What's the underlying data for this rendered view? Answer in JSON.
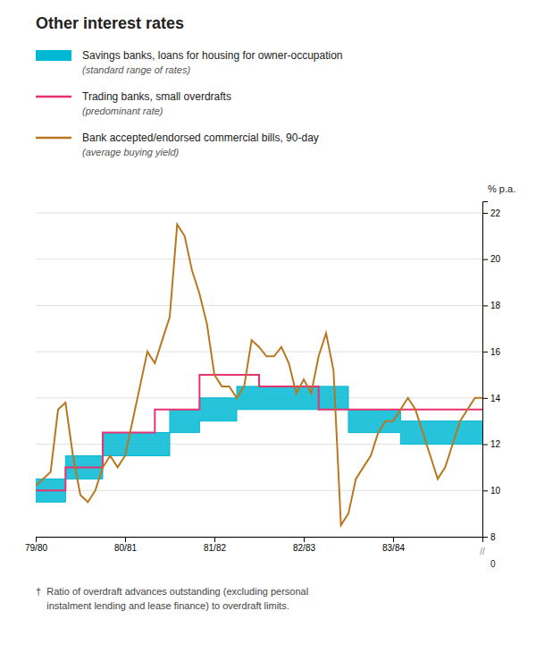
{
  "chart_data": {
    "type": "line",
    "title": "Other interest rates",
    "y_label": "% p.a.",
    "xlim": [
      0,
      60
    ],
    "xticks": [
      {
        "value": 0,
        "label": "79/80"
      },
      {
        "value": 12,
        "label": "80/81"
      },
      {
        "value": 24,
        "label": "81/82"
      },
      {
        "value": 36,
        "label": "82/83"
      },
      {
        "value": 48,
        "label": "83/84"
      }
    ],
    "ylim": [
      8,
      22.5
    ],
    "yticks": [
      8,
      10,
      12,
      14,
      16,
      18,
      20,
      22
    ],
    "grid": true,
    "series": [
      {
        "name": "Savings banks, loans for housing for owner-occupation",
        "description": "(standard range of rates)",
        "type": "area",
        "color": "#00b8d4",
        "x": [
          0,
          4,
          4,
          9,
          9,
          13,
          13,
          18,
          18,
          22,
          22,
          27,
          27,
          36,
          36,
          42,
          42,
          49,
          49,
          60
        ],
        "lower": [
          9.5,
          9.5,
          10.5,
          10.5,
          11.5,
          11.5,
          11.5,
          11.5,
          12.5,
          12.5,
          13.0,
          13.0,
          13.5,
          13.5,
          13.5,
          13.5,
          12.5,
          12.5,
          12.0,
          12.0
        ],
        "upper": [
          10.5,
          10.5,
          11.5,
          11.5,
          12.5,
          12.5,
          12.5,
          12.5,
          13.5,
          13.5,
          14.0,
          14.0,
          14.5,
          14.5,
          14.5,
          14.5,
          13.5,
          13.5,
          13.0,
          13.0
        ]
      },
      {
        "name": "Trading banks, small overdrafts",
        "description": "(predominant rate)",
        "type": "line",
        "color": "#e8336e",
        "x": [
          0,
          4,
          4,
          9,
          9,
          16,
          16,
          22,
          22,
          30,
          30,
          38,
          38,
          42,
          42,
          60
        ],
        "values": [
          10.0,
          10.0,
          11.0,
          11.0,
          12.5,
          12.5,
          13.5,
          13.5,
          15.0,
          15.0,
          14.5,
          14.5,
          13.5,
          13.5,
          13.5,
          13.5
        ]
      },
      {
        "name": "Bank accepted/endorsed commercial bills, 90-day",
        "description": "(average buying yield)",
        "type": "line",
        "color": "#b87820",
        "x": [
          0,
          1,
          2,
          3,
          4,
          5,
          6,
          7,
          8,
          9,
          10,
          11,
          12,
          13,
          14,
          15,
          16,
          17,
          18,
          19,
          20,
          21,
          22,
          23,
          24,
          25,
          26,
          27,
          28,
          29,
          30,
          31,
          32,
          33,
          34,
          35,
          36,
          37,
          38,
          39,
          40,
          41,
          42,
          43,
          44,
          45,
          46,
          47,
          48,
          49,
          50,
          51,
          52,
          53,
          54,
          55,
          56,
          57,
          58,
          59,
          60
        ],
        "values": [
          10.2,
          10.5,
          10.8,
          13.5,
          13.8,
          11.5,
          9.8,
          9.5,
          10.0,
          11.0,
          11.5,
          11.0,
          11.5,
          13.0,
          14.5,
          16.0,
          15.5,
          16.5,
          17.5,
          21.5,
          21.0,
          19.5,
          18.5,
          17.2,
          15.0,
          14.5,
          14.5,
          14.0,
          14.5,
          16.5,
          16.2,
          15.8,
          15.8,
          16.2,
          15.5,
          14.2,
          14.8,
          14.2,
          15.8,
          16.8,
          15.2,
          8.5,
          9.0,
          10.5,
          11.0,
          11.5,
          12.5,
          13.0,
          13.0,
          13.5,
          14.0,
          13.5,
          12.5,
          11.5,
          10.5,
          11.0,
          12.0,
          13.0,
          13.5,
          14.0,
          14.0
        ]
      }
    ],
    "annotations": [
      "0",
      "//"
    ],
    "footnote": [
      "†  Ratio of overdraft advances outstanding (excluding personal",
      "    instalment lending and lease finance) to overdraft limits."
    ]
  }
}
